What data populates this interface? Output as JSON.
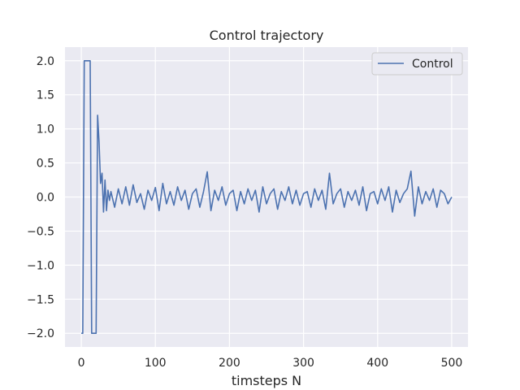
{
  "chart_data": {
    "type": "line",
    "title": "Control trajectory",
    "xlabel": "timsteps N",
    "ylabel": "",
    "xlim": [
      -22,
      522
    ],
    "ylim": [
      -2.2,
      2.2
    ],
    "xticks": [
      0,
      100,
      200,
      300,
      400,
      500
    ],
    "yticks": [
      2.0,
      1.5,
      1.0,
      0.5,
      0.0,
      -0.5,
      -1.0,
      -1.5,
      -2.0
    ],
    "xtick_labels": [
      "0",
      "100",
      "200",
      "300",
      "400",
      "500"
    ],
    "ytick_labels": [
      "2.0",
      "1.5",
      "1.0",
      "0.5",
      "0.0",
      "−0.5",
      "−1.0",
      "−1.5",
      "−2.0"
    ],
    "grid": true,
    "legend": {
      "placement": "top-right"
    },
    "series": [
      {
        "name": "Control",
        "color": "#4c72b0",
        "x": [
          0,
          2,
          4,
          6,
          8,
          10,
          12,
          14,
          16,
          18,
          20,
          22,
          24,
          26,
          28,
          30,
          32,
          34,
          36,
          38,
          40,
          45,
          50,
          55,
          60,
          65,
          70,
          75,
          80,
          85,
          90,
          95,
          100,
          105,
          110,
          115,
          120,
          125,
          130,
          135,
          140,
          145,
          150,
          155,
          160,
          165,
          170,
          175,
          180,
          185,
          190,
          195,
          200,
          205,
          210,
          215,
          220,
          225,
          230,
          235,
          240,
          245,
          250,
          255,
          260,
          265,
          270,
          275,
          280,
          285,
          290,
          295,
          300,
          305,
          310,
          315,
          320,
          325,
          330,
          335,
          340,
          345,
          350,
          355,
          360,
          365,
          370,
          375,
          380,
          385,
          390,
          395,
          400,
          405,
          410,
          415,
          420,
          425,
          430,
          435,
          440,
          445,
          450,
          455,
          460,
          465,
          470,
          475,
          480,
          485,
          490,
          495,
          500
        ],
        "y": [
          -2.0,
          -2.0,
          2.0,
          2.0,
          2.0,
          2.0,
          2.0,
          -2.0,
          -2.0,
          -2.0,
          -2.0,
          1.2,
          0.8,
          0.2,
          0.35,
          -0.22,
          0.25,
          -0.2,
          0.1,
          -0.05,
          0.08,
          -0.15,
          0.12,
          -0.1,
          0.15,
          -0.12,
          0.18,
          -0.08,
          0.05,
          -0.18,
          0.1,
          -0.05,
          0.14,
          -0.2,
          0.2,
          -0.1,
          0.08,
          -0.12,
          0.15,
          -0.05,
          0.1,
          -0.18,
          0.05,
          0.12,
          -0.15,
          0.08,
          0.37,
          -0.2,
          0.1,
          -0.05,
          0.15,
          -0.12,
          0.05,
          0.1,
          -0.2,
          0.08,
          -0.1,
          0.12,
          -0.05,
          0.1,
          -0.22,
          0.15,
          -0.1,
          0.05,
          0.12,
          -0.18,
          0.08,
          -0.05,
          0.15,
          -0.1,
          0.1,
          -0.12,
          0.05,
          0.08,
          -0.15,
          0.12,
          -0.05,
          0.1,
          -0.18,
          0.35,
          -0.1,
          0.05,
          0.12,
          -0.15,
          0.08,
          -0.05,
          0.1,
          -0.12,
          0.15,
          -0.2,
          0.05,
          0.08,
          -0.1,
          0.12,
          -0.05,
          0.15,
          -0.22,
          0.1,
          -0.08,
          0.05,
          0.12,
          0.38,
          -0.28,
          0.15,
          -0.1,
          0.08,
          -0.05,
          0.12,
          -0.15,
          0.1,
          0.05,
          -0.1,
          0.0
        ]
      }
    ]
  }
}
